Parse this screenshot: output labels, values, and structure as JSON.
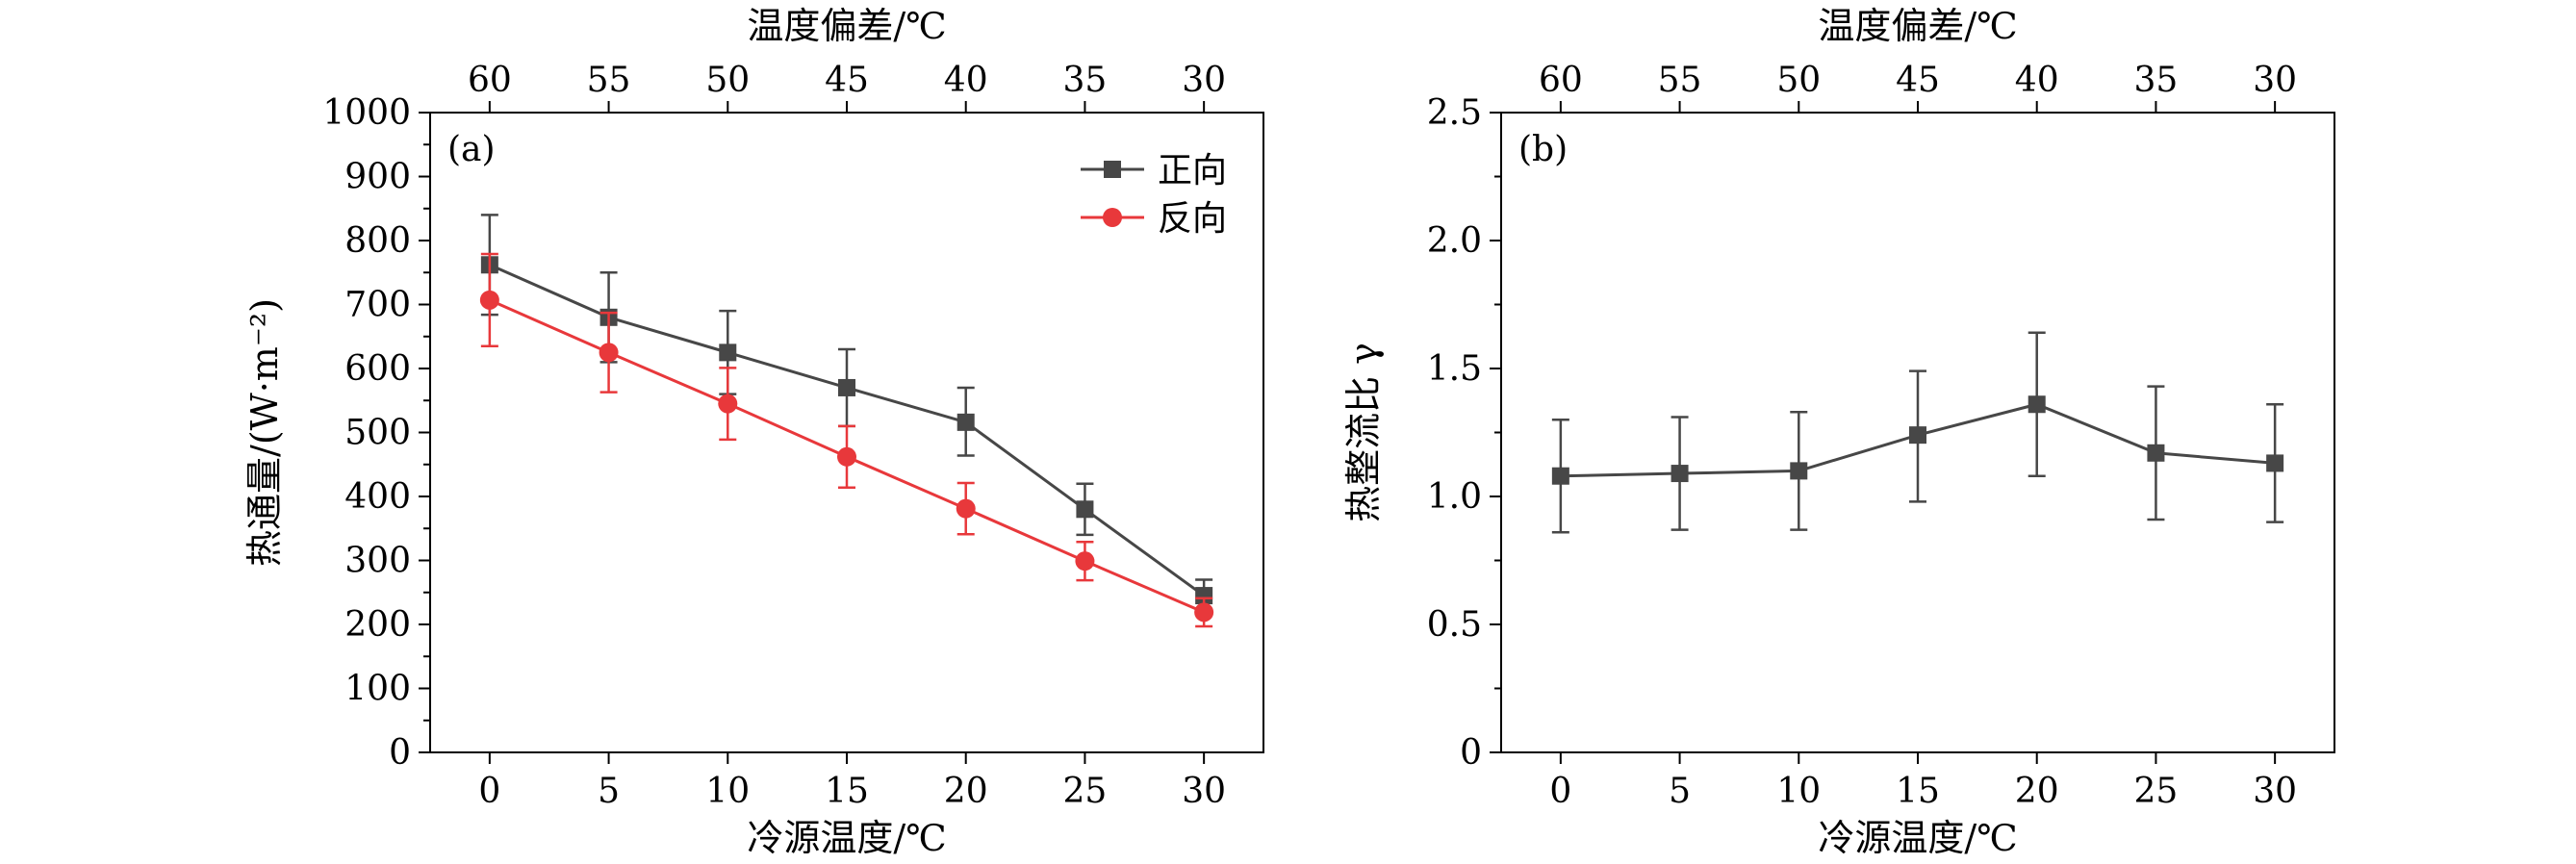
{
  "chart_data": [
    {
      "type": "line",
      "panel_label": "(a)",
      "xlabel": "冷源温度/℃",
      "ylabel": "热通量/(W·m⁻²)",
      "top_xlabel": "温度偏差/℃",
      "x": [
        0,
        5,
        10,
        15,
        20,
        25,
        30
      ],
      "xticks": [
        0,
        5,
        10,
        15,
        20,
        25,
        30
      ],
      "top_xticks": [
        60,
        55,
        50,
        45,
        40,
        35,
        30
      ],
      "xlim": [
        -2.5,
        32.5
      ],
      "ylim": [
        0,
        1000
      ],
      "yticks": [
        0,
        100,
        200,
        300,
        400,
        500,
        600,
        700,
        800,
        900,
        1000
      ],
      "legend_position": "top-right",
      "series": [
        {
          "name": "正向",
          "marker": "square",
          "color": "#474747",
          "values": [
            762,
            680,
            625,
            570,
            516,
            380,
            245
          ],
          "err_low": [
            78,
            70,
            65,
            60,
            52,
            40,
            25
          ],
          "err_high": [
            78,
            70,
            65,
            60,
            54,
            40,
            25
          ]
        },
        {
          "name": "反向",
          "marker": "circle",
          "color": "#e8383b",
          "values": [
            707,
            625,
            545,
            462,
            381,
            299,
            219
          ],
          "err_low": [
            72,
            62,
            56,
            48,
            40,
            30,
            22
          ],
          "err_high": [
            72,
            62,
            56,
            48,
            40,
            30,
            22
          ]
        }
      ]
    },
    {
      "type": "line",
      "panel_label": "(b)",
      "xlabel": "冷源温度/℃",
      "ylabel": "热整流比 γ",
      "top_xlabel": "温度偏差/℃",
      "x": [
        0,
        5,
        10,
        15,
        20,
        25,
        30
      ],
      "xticks": [
        0,
        5,
        10,
        15,
        20,
        25,
        30
      ],
      "top_xticks": [
        60,
        55,
        50,
        45,
        40,
        35,
        30
      ],
      "xlim": [
        -2.5,
        32.5
      ],
      "ylim": [
        0,
        2.5
      ],
      "yticks": [
        0,
        0.5,
        1.0,
        1.5,
        2.0,
        2.5
      ],
      "ytick_labels": [
        "0",
        "0.5",
        "1.0",
        "1.5",
        "2.0",
        "2.5"
      ],
      "series": [
        {
          "marker": "square",
          "color": "#474747",
          "values": [
            1.08,
            1.09,
            1.1,
            1.24,
            1.36,
            1.17,
            1.13
          ],
          "err_low": [
            0.22,
            0.22,
            0.23,
            0.26,
            0.28,
            0.26,
            0.23
          ],
          "err_high": [
            0.22,
            0.22,
            0.23,
            0.25,
            0.28,
            0.26,
            0.23
          ]
        }
      ]
    }
  ]
}
